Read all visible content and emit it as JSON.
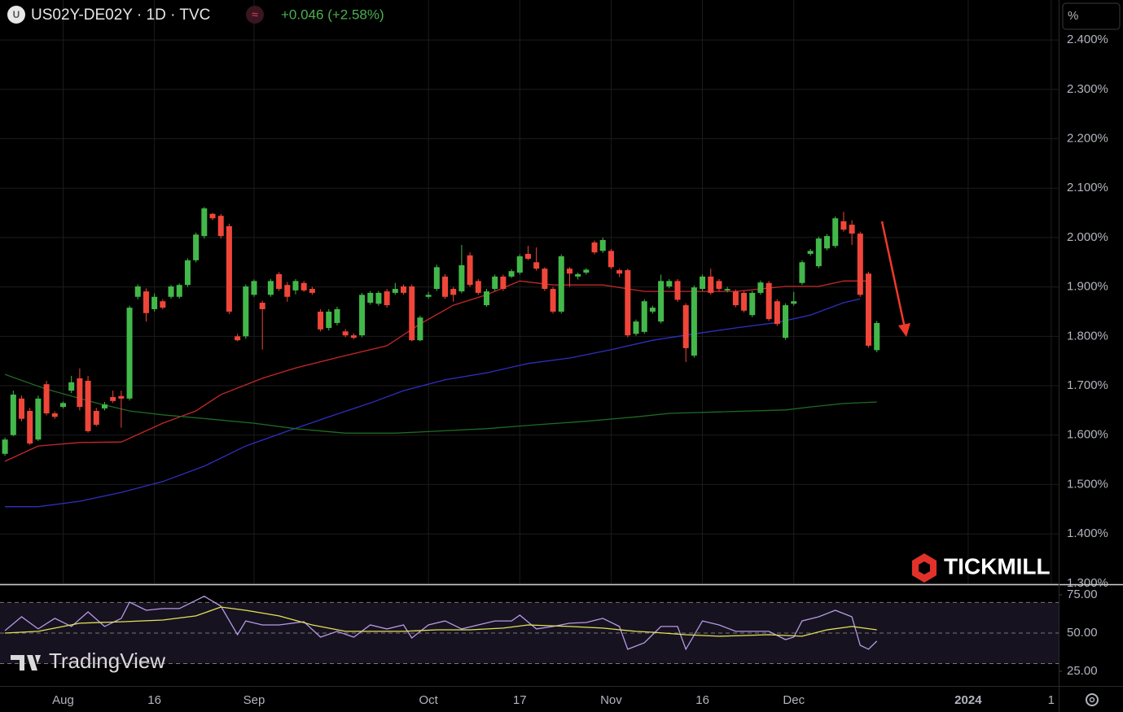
{
  "header": {
    "symbol_icon": "U",
    "symbol": "US02Y-DE02Y · 1D · TVC",
    "indicator_icon": "≈",
    "change": "+0.046 (+2.58%)",
    "scale_mode": "%"
  },
  "logos": {
    "broker": "TICKMILL",
    "platform": "TradingView"
  },
  "chart_data": [
    {
      "type": "candlestick",
      "up_color": "#43b84a",
      "down_color": "#f0463a",
      "grid": true,
      "xlim": [
        -0.6,
        126.9
      ],
      "xticks": [
        {
          "value": 7,
          "label": "Aug"
        },
        {
          "value": 18,
          "label": "16"
        },
        {
          "value": 30,
          "label": "Sep"
        },
        {
          "value": 51,
          "label": "Oct"
        },
        {
          "value": 62,
          "label": "17"
        },
        {
          "value": 73,
          "label": "Nov"
        },
        {
          "value": 84,
          "label": "16"
        },
        {
          "value": 95,
          "label": "Dec"
        },
        {
          "value": 116,
          "label": "2024"
        },
        {
          "value": 126,
          "label": "1"
        }
      ],
      "ylim": [
        1.298,
        2.481
      ],
      "yticks": [
        {
          "value": 2.4,
          "label": "2.400%"
        },
        {
          "value": 2.3,
          "label": "2.300%"
        },
        {
          "value": 2.2,
          "label": "2.200%"
        },
        {
          "value": 2.1,
          "label": "2.100%"
        },
        {
          "value": 2.0,
          "label": "2.000%"
        },
        {
          "value": 1.9,
          "label": "1.900%"
        },
        {
          "value": 1.8,
          "label": "1.800%"
        },
        {
          "value": 1.7,
          "label": "1.700%"
        },
        {
          "value": 1.6,
          "label": "1.600%"
        },
        {
          "value": 1.5,
          "label": "1.500%"
        },
        {
          "value": 1.4,
          "label": "1.400%"
        },
        {
          "value": 1.3,
          "label": "1.300%"
        }
      ],
      "open": [
        1.562,
        1.6,
        1.674,
        1.649,
        1.591,
        1.703,
        1.644,
        1.657,
        1.69,
        1.715,
        1.71,
        1.649,
        1.654,
        1.677,
        1.679,
        1.674,
        1.88,
        1.891,
        1.855,
        1.871,
        1.88,
        1.88,
        1.904,
        1.954,
        2.003,
        2.048,
        2.044,
        2.023,
        1.8,
        1.8,
        1.884,
        1.868,
        1.884,
        1.926,
        1.904,
        1.893,
        1.908,
        1.896,
        1.85,
        1.817,
        1.827,
        1.81,
        1.802,
        1.802,
        1.868,
        1.866,
        1.891,
        1.888,
        1.901,
        1.901,
        1.792,
        1.88,
        1.896,
        1.921,
        1.896,
        1.891,
        1.964,
        1.912,
        1.863,
        1.896,
        1.921,
        1.921,
        1.929,
        1.967,
        1.95,
        1.937,
        1.896,
        1.85,
        1.937,
        1.921,
        1.929,
        1.99,
        1.973,
        1.973,
        1.934,
        1.934,
        1.805,
        1.809,
        1.85,
        1.83,
        1.901,
        1.912,
        1.863,
        1.761,
        1.896,
        1.921,
        1.912,
        1.893,
        1.891,
        1.888,
        1.843,
        1.888,
        1.908,
        1.871,
        1.797,
        1.866,
        1.908,
        1.967,
        1.942,
        1.978,
        1.983,
        2.033,
        2.026,
        2.008,
        1.927,
        1.772
      ],
      "high": [
        1.595,
        1.69,
        1.68,
        1.655,
        1.68,
        1.71,
        1.648,
        1.668,
        1.72,
        1.735,
        1.72,
        1.655,
        1.667,
        1.69,
        1.69,
        1.862,
        1.905,
        1.897,
        1.887,
        1.875,
        1.904,
        1.907,
        1.958,
        2.01,
        2.062,
        2.05,
        2.048,
        2.028,
        1.805,
        1.905,
        1.915,
        1.872,
        1.916,
        1.93,
        1.91,
        1.916,
        1.912,
        1.9,
        1.855,
        1.855,
        1.86,
        1.815,
        1.806,
        1.888,
        1.892,
        1.892,
        1.896,
        1.908,
        1.905,
        1.905,
        1.842,
        1.89,
        1.945,
        1.926,
        1.9,
        1.985,
        1.97,
        1.916,
        1.896,
        1.925,
        1.925,
        1.936,
        1.966,
        1.983,
        1.98,
        1.94,
        1.9,
        1.966,
        1.94,
        1.929,
        1.938,
        1.994,
        2.0,
        1.977,
        1.937,
        1.937,
        1.834,
        1.875,
        1.862,
        1.925,
        1.916,
        1.916,
        1.867,
        1.903,
        1.925,
        1.937,
        1.916,
        1.9,
        1.895,
        1.892,
        1.892,
        1.913,
        1.912,
        1.875,
        1.867,
        1.89,
        1.954,
        1.977,
        2.002,
        2.007,
        2.043,
        2.052,
        2.035,
        2.012,
        1.931,
        1.831
      ],
      "low": [
        1.558,
        1.598,
        1.628,
        1.58,
        1.588,
        1.64,
        1.633,
        1.654,
        1.685,
        1.65,
        1.605,
        1.618,
        1.65,
        1.665,
        1.615,
        1.67,
        1.875,
        1.83,
        1.85,
        1.855,
        1.876,
        1.876,
        1.9,
        1.95,
        1.998,
        2.035,
        1.998,
        1.845,
        1.79,
        1.795,
        1.88,
        1.773,
        1.88,
        1.892,
        1.87,
        1.885,
        1.89,
        1.884,
        1.81,
        1.812,
        1.822,
        1.798,
        1.794,
        1.798,
        1.864,
        1.862,
        1.858,
        1.884,
        1.884,
        1.79,
        1.79,
        1.876,
        1.892,
        1.876,
        1.87,
        1.887,
        1.9,
        1.884,
        1.86,
        1.892,
        1.892,
        1.918,
        1.925,
        1.954,
        1.933,
        1.892,
        1.846,
        1.846,
        1.9,
        1.915,
        1.925,
        1.966,
        1.969,
        1.936,
        1.92,
        1.798,
        1.801,
        1.805,
        1.846,
        1.826,
        1.897,
        1.87,
        1.748,
        1.757,
        1.892,
        1.884,
        1.892,
        1.889,
        1.859,
        1.848,
        1.839,
        1.884,
        1.831,
        1.821,
        1.793,
        1.862,
        1.904,
        1.963,
        1.938,
        1.974,
        1.979,
        2.012,
        1.985,
        1.88,
        1.777,
        1.768
      ],
      "close": [
        1.591,
        1.682,
        1.633,
        1.583,
        1.674,
        1.644,
        1.637,
        1.665,
        1.707,
        1.657,
        1.608,
        1.621,
        1.662,
        1.669,
        1.674,
        1.858,
        1.901,
        1.847,
        1.88,
        1.858,
        1.901,
        1.904,
        1.954,
        2.006,
        2.059,
        2.039,
        2.003,
        1.85,
        1.792,
        1.901,
        1.912,
        1.855,
        1.912,
        1.896,
        1.88,
        1.912,
        1.893,
        1.888,
        1.814,
        1.85,
        1.855,
        1.802,
        1.797,
        1.884,
        1.888,
        1.888,
        1.863,
        1.896,
        1.888,
        1.792,
        1.838,
        1.884,
        1.94,
        1.88,
        1.884,
        1.944,
        1.904,
        1.888,
        1.891,
        1.921,
        1.896,
        1.932,
        1.962,
        1.957,
        1.937,
        1.896,
        1.85,
        1.962,
        1.927,
        1.926,
        1.935,
        1.97,
        1.995,
        1.94,
        1.927,
        1.802,
        1.83,
        1.871,
        1.858,
        1.912,
        1.912,
        1.874,
        1.776,
        1.899,
        1.921,
        1.888,
        1.896,
        1.896,
        1.863,
        1.852,
        1.888,
        1.909,
        1.835,
        1.825,
        1.863,
        1.871,
        1.95,
        1.973,
        1.998,
        2.003,
        2.039,
        2.016,
        2.008,
        1.884,
        1.781,
        1.827
      ],
      "series": [
        {
          "color": "#c62828",
          "x": [
            0,
            4,
            9,
            14,
            19,
            23,
            26,
            31,
            35,
            41,
            46,
            50,
            54,
            58,
            62,
            66,
            72,
            77,
            83,
            88,
            94,
            98,
            101,
            104
          ],
          "values": [
            1.547,
            1.578,
            1.585,
            1.586,
            1.624,
            1.649,
            1.682,
            1.715,
            1.736,
            1.761,
            1.781,
            1.825,
            1.863,
            1.884,
            1.912,
            1.904,
            1.904,
            1.891,
            1.891,
            1.891,
            1.901,
            1.901,
            1.912,
            1.912
          ]
        },
        {
          "color": "#2f2fc0",
          "x": [
            0,
            4,
            9,
            14,
            19,
            24,
            29,
            34,
            39,
            44,
            48,
            53,
            58,
            63,
            68,
            73,
            78,
            83,
            88,
            93,
            97,
            101,
            103
          ],
          "values": [
            1.455,
            1.455,
            1.466,
            1.484,
            1.506,
            1.537,
            1.578,
            1.608,
            1.637,
            1.665,
            1.69,
            1.712,
            1.726,
            1.745,
            1.756,
            1.773,
            1.792,
            1.805,
            1.817,
            1.828,
            1.843,
            1.868,
            1.876
          ]
        },
        {
          "color": "#1f6b24",
          "x": [
            0,
            5,
            11,
            15,
            19,
            25,
            30,
            35,
            41,
            47,
            52,
            58,
            64,
            70,
            76,
            80,
            86,
            94,
            97,
            101,
            105
          ],
          "values": [
            1.723,
            1.693,
            1.665,
            1.649,
            1.641,
            1.632,
            1.624,
            1.613,
            1.604,
            1.604,
            1.608,
            1.613,
            1.621,
            1.628,
            1.637,
            1.644,
            1.647,
            1.651,
            1.657,
            1.664,
            1.667
          ]
        }
      ]
    },
    {
      "type": "line",
      "xlim": [
        -0.6,
        126.9
      ],
      "ylim": [
        15.4,
        81.9
      ],
      "yticks": [
        {
          "value": 75,
          "label": "75.00"
        },
        {
          "value": 50,
          "label": "50.00"
        },
        {
          "value": 25,
          "label": "25.00"
        }
      ],
      "band": [
        30,
        70
      ],
      "band_color": "#17121f",
      "series": [
        {
          "color": "#b59be6",
          "x": [
            0,
            2,
            4,
            6,
            8,
            10,
            12,
            14,
            15,
            17,
            19,
            21,
            24,
            26,
            28,
            29,
            31,
            33,
            36,
            38,
            40,
            42,
            44,
            46,
            48,
            49,
            51,
            53,
            55,
            57,
            59,
            61,
            62,
            64,
            66,
            68,
            70,
            72,
            74,
            75,
            77,
            79,
            81,
            82,
            84,
            86,
            88,
            90,
            92,
            94,
            95,
            96,
            98,
            100,
            102,
            103,
            104,
            105
          ],
          "values": [
            51.6,
            60.6,
            52.7,
            59.6,
            54.3,
            63.8,
            54.3,
            59.6,
            70.2,
            64.9,
            66.0,
            66.0,
            74.0,
            67.6,
            48.9,
            57.9,
            55.3,
            55.3,
            57.4,
            47.3,
            51.1,
            47.3,
            55.3,
            52.7,
            55.3,
            46.8,
            55.3,
            57.9,
            52.7,
            55.3,
            57.9,
            57.9,
            61.7,
            52.7,
            54.3,
            56.4,
            56.9,
            59.6,
            54.3,
            39.4,
            43.6,
            54.3,
            54.3,
            39.4,
            57.9,
            55.3,
            51.1,
            51.1,
            51.1,
            45.7,
            47.3,
            57.9,
            60.6,
            64.9,
            60.6,
            42.0,
            39.4,
            44.7
          ]
        },
        {
          "color": "#e2e25a",
          "x": [
            0,
            4,
            9,
            14,
            19,
            23,
            26,
            29,
            33,
            37,
            41,
            45,
            48,
            52,
            56,
            60,
            63,
            68,
            72,
            76,
            78,
            82,
            86,
            92,
            96,
            99,
            102,
            105
          ],
          "values": [
            50.0,
            51.1,
            56.4,
            57.4,
            58.5,
            61.2,
            67.0,
            64.9,
            61.2,
            55.3,
            51.1,
            51.1,
            51.1,
            52.1,
            52.1,
            53.2,
            55.3,
            54.3,
            53.2,
            51.1,
            50.5,
            48.9,
            47.9,
            48.9,
            47.9,
            52.1,
            54.3,
            52.1
          ]
        }
      ]
    }
  ]
}
